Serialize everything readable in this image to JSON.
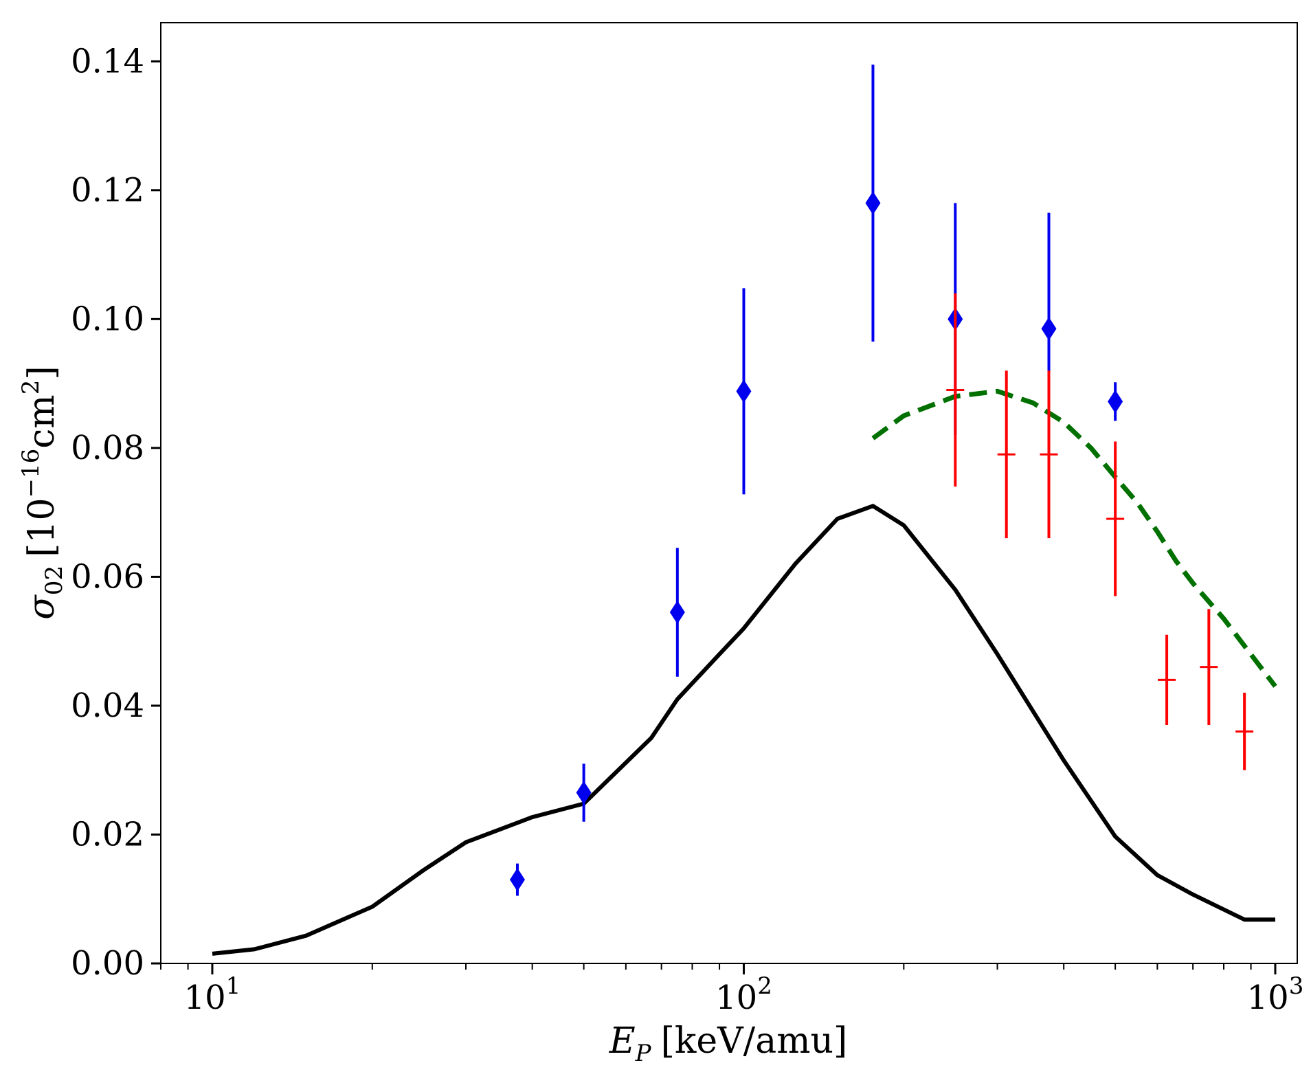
{
  "chart_data": {
    "type": "line",
    "xscale": "log",
    "xlim": [
      8,
      1100
    ],
    "ylim": [
      0,
      0.146
    ],
    "xlabel": {
      "symbol": "E",
      "subscript": "P",
      "units": "[keV/amu]"
    },
    "ylabel": {
      "symbol": "σ",
      "subscript": "02",
      "units_open": "[10",
      "units_exp": "−16",
      "units_mid": "cm",
      "units_exp2": "2",
      "units_close": "]"
    },
    "x_ticks": [
      {
        "value": 10,
        "base": "10",
        "exp": "1"
      },
      {
        "value": 100,
        "base": "10",
        "exp": "2"
      },
      {
        "value": 1000,
        "base": "10",
        "exp": "3"
      }
    ],
    "y_ticks": [
      {
        "value": 0.0,
        "label": "0.00"
      },
      {
        "value": 0.02,
        "label": "0.02"
      },
      {
        "value": 0.04,
        "label": "0.04"
      },
      {
        "value": 0.06,
        "label": "0.06"
      },
      {
        "value": 0.08,
        "label": "0.08"
      },
      {
        "value": 0.1,
        "label": "0.10"
      },
      {
        "value": 0.12,
        "label": "0.12"
      },
      {
        "value": 0.14,
        "label": "0.14"
      }
    ],
    "series": [
      {
        "name": "theory-solid",
        "kind": "line",
        "color": "#000000",
        "style": "solid",
        "x": [
          10,
          12,
          15,
          20,
          25,
          30,
          40,
          50,
          67,
          75,
          90,
          100,
          125,
          150,
          175,
          200,
          250,
          300,
          400,
          500,
          600,
          700,
          875,
          1000
        ],
        "y": [
          0.0015,
          0.0022,
          0.0043,
          0.0088,
          0.0145,
          0.0188,
          0.0227,
          0.0248,
          0.035,
          0.041,
          0.048,
          0.052,
          0.062,
          0.069,
          0.071,
          0.068,
          0.058,
          0.048,
          0.0315,
          0.0197,
          0.0137,
          0.0107,
          0.0068,
          0.0068
        ]
      },
      {
        "name": "theory-dashed",
        "kind": "line",
        "color": "#007000",
        "style": "dashed",
        "x": [
          175,
          200,
          250,
          300,
          350,
          400,
          450,
          500,
          550,
          600,
          650,
          700,
          800,
          1000
        ],
        "y": [
          0.0815,
          0.085,
          0.088,
          0.0888,
          0.087,
          0.084,
          0.08,
          0.0755,
          0.0715,
          0.067,
          0.0625,
          0.059,
          0.0535,
          0.043
        ]
      },
      {
        "name": "experiment-blue",
        "kind": "points",
        "marker": "diamond",
        "color": "#0000ee",
        "x": [
          37.5,
          50,
          75,
          100,
          175,
          250,
          375,
          500
        ],
        "y": [
          0.013,
          0.0265,
          0.0545,
          0.0888,
          0.118,
          0.1,
          0.0985,
          0.0872
        ],
        "err": [
          0.0025,
          0.0045,
          0.01,
          0.016,
          0.0215,
          0.018,
          0.018,
          0.003
        ]
      },
      {
        "name": "experiment-red",
        "kind": "points",
        "marker": "plus",
        "color": "#ff0000",
        "x": [
          250,
          312,
          375,
          500,
          625,
          750,
          875
        ],
        "y": [
          0.089,
          0.079,
          0.079,
          0.069,
          0.044,
          0.046,
          0.036
        ],
        "err": [
          0.015,
          0.013,
          0.013,
          0.012,
          0.007,
          0.009,
          0.006
        ]
      }
    ]
  }
}
